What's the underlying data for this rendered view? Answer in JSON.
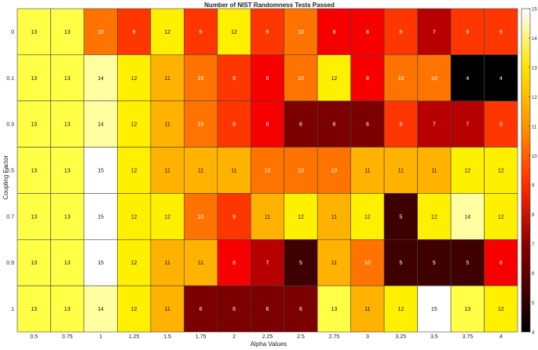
{
  "chart_data": {
    "type": "heatmap",
    "title": "Number of NIST Randomness Tests Passed",
    "xlabel": "Alpha Values",
    "ylabel": "Coupling Factor",
    "x": [
      "0.5",
      "0.75",
      "1",
      "1.25",
      "1.5",
      "1.75",
      "2",
      "2.25",
      "2.5",
      "2.75",
      "3",
      "3.25",
      "3.5",
      "3.75",
      "4"
    ],
    "y": [
      "0",
      "0.1",
      "0.3",
      "0.5",
      "0.7",
      "0.9",
      "1"
    ],
    "values": [
      [
        13,
        13,
        10,
        9,
        12,
        9,
        12,
        9,
        10,
        8,
        8,
        9,
        7,
        9,
        9
      ],
      [
        13,
        13,
        14,
        12,
        11,
        10,
        9,
        8,
        10,
        12,
        8,
        10,
        10,
        4,
        4
      ],
      [
        13,
        13,
        14,
        12,
        11,
        10,
        9,
        8,
        6,
        6,
        6,
        9,
        7,
        7,
        9
      ],
      [
        13,
        13,
        15,
        12,
        11,
        11,
        11,
        10,
        10,
        10,
        11,
        11,
        11,
        12,
        12
      ],
      [
        13,
        13,
        15,
        12,
        12,
        10,
        9,
        11,
        12,
        11,
        12,
        5,
        12,
        14,
        12
      ],
      [
        13,
        13,
        15,
        12,
        11,
        11,
        8,
        7,
        5,
        11,
        10,
        5,
        5,
        5,
        8
      ],
      [
        13,
        13,
        14,
        12,
        11,
        6,
        6,
        6,
        6,
        13,
        11,
        12,
        15,
        13,
        12
      ]
    ],
    "colormap": "hot",
    "colorbar": {
      "range": [
        4,
        15
      ],
      "ticks": [
        "4",
        "5",
        "6",
        "7",
        "8",
        "9",
        "10",
        "11",
        "12",
        "13",
        "14",
        "15"
      ],
      "position": "right"
    },
    "grid": false
  }
}
